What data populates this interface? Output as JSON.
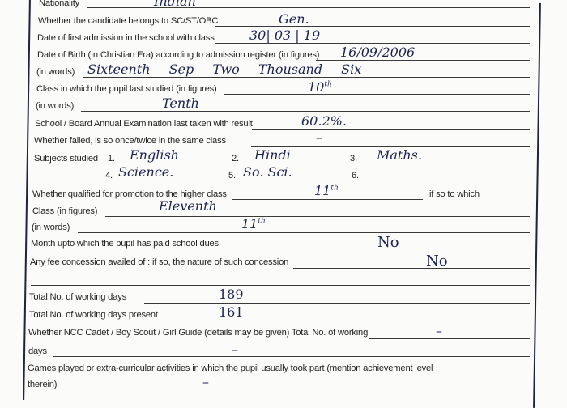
{
  "form": {
    "nationality": {
      "label": "Nationality",
      "value": "Indian"
    },
    "category": {
      "label": "Whether the candidate belongs to SC/ST/OBC",
      "value": "Gen."
    },
    "first_admission": {
      "label": "Date of first admission in the school with class",
      "value": "30| 03 | 19"
    },
    "dob_figures": {
      "label": "Date of Birth (In Christian Era) according to admission register (in figures)",
      "value": "16/09/2006"
    },
    "dob_words": {
      "label": "(in words)",
      "value": "Sixteenth Sep Two Thousand Six"
    },
    "last_class_figures": {
      "label": "Class in which the pupil last studied (in figures)",
      "value": "10",
      "suffix": "th"
    },
    "last_class_words": {
      "label": "(in words)",
      "value": "Tenth"
    },
    "exam_result": {
      "label": "School / Board Annual Examination last taken with result",
      "value": "60.2%."
    },
    "failed": {
      "label": "Whether failed, is so once/twice in the same class",
      "value": "–"
    },
    "subjects": {
      "label": "Subjects studied",
      "items": [
        {
          "num": "1.",
          "value": "English"
        },
        {
          "num": "2.",
          "value": "Hindi"
        },
        {
          "num": "3.",
          "value": "Maths."
        },
        {
          "num": "4.",
          "value": "Science."
        },
        {
          "num": "5.",
          "value": "So. Sci."
        },
        {
          "num": "6.",
          "value": ""
        }
      ]
    },
    "promotion": {
      "label": "Whether qualified for promotion to the higher class",
      "value": "11",
      "suffix": "th",
      "trailing": "if so to which"
    },
    "promo_class_figures": {
      "label": "Class (in figures)",
      "value": "Eleventh"
    },
    "promo_class_words": {
      "label": "(in words)",
      "value": "11",
      "suffix": "th"
    },
    "dues": {
      "label": "Month upto which the pupil has paid school dues",
      "value": "No"
    },
    "fee_concession": {
      "label": "Any fee concession availed of : if so, the nature of such concession",
      "value": "No"
    },
    "working_days": {
      "label": "Total No. of working days",
      "value": "189"
    },
    "days_present": {
      "label": "Total No. of working days present",
      "value": "161"
    },
    "ncc": {
      "label": "Whether NCC Cadet / Boy Scout / Girl Guide (details may be given) Total No. of working",
      "value": "–"
    },
    "ncc_days": {
      "label": "days",
      "value": "–"
    },
    "games": {
      "label": "Games played  or extra-curricular activities in which the pupil usually took part (mention achievement level",
      "label2": "therein)",
      "value": "–"
    }
  },
  "colors": {
    "ink": "#1c2350",
    "border": "#1d2440"
  }
}
